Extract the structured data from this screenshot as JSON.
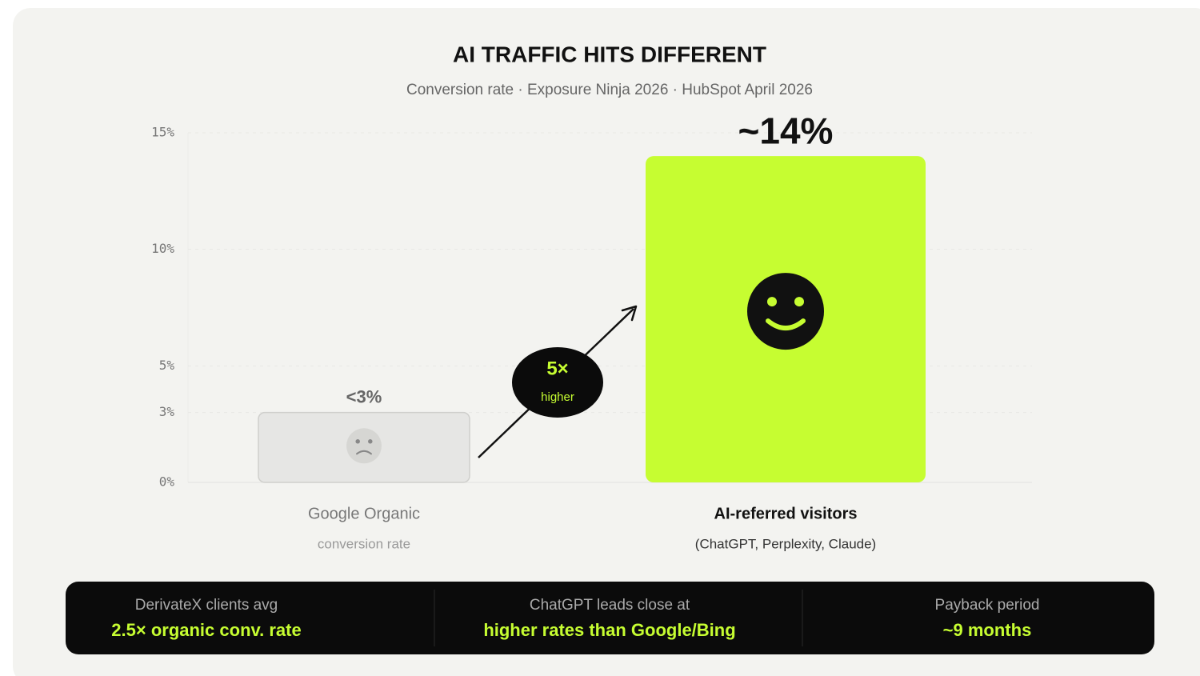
{
  "chart_data": {
    "type": "bar",
    "title": "AI TRAFFIC HITS DIFFERENT",
    "subtitle": "Conversion rate · Exposure Ninja 2026 · HubSpot April 2026",
    "categories": [
      "Google Organic",
      "AI-referred visitors"
    ],
    "category_sublabels": [
      "conversion rate",
      "(ChatGPT, Perplexity, Claude)"
    ],
    "values": [
      3,
      14
    ],
    "value_labels": [
      "<3%",
      "~14%"
    ],
    "colors": [
      "#e6e6e4",
      "#c6fd31"
    ],
    "ylim": [
      0,
      15
    ],
    "yticks": [
      {
        "value": 0,
        "label": "0%"
      },
      {
        "value": 3,
        "label": "3%"
      },
      {
        "value": 5,
        "label": "5%"
      },
      {
        "value": 10,
        "label": "10%"
      },
      {
        "value": 15,
        "label": "15%"
      }
    ],
    "grid": true,
    "annotation": {
      "multiplier": "5×",
      "text": "higher"
    }
  },
  "stats": [
    {
      "label": "DerivateX clients avg",
      "value": "2.5× organic conv. rate"
    },
    {
      "label": "ChatGPT leads close at",
      "value": "higher rates than Google/Bing"
    },
    {
      "label": "Payback period",
      "value": "~9 months"
    }
  ]
}
